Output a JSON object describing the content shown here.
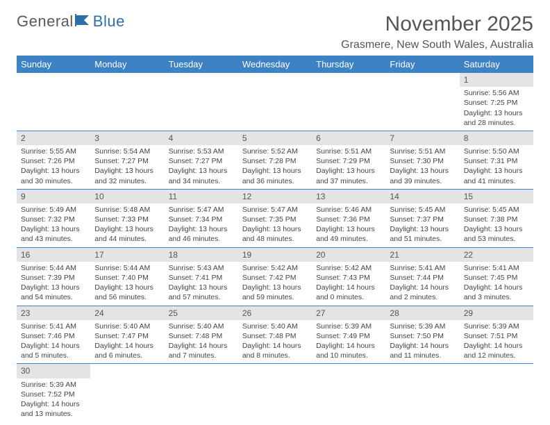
{
  "logo": {
    "text_a": "General",
    "text_b": "Blue"
  },
  "title": "November 2025",
  "location": "Grasmere, New South Wales, Australia",
  "colors": {
    "header_bg": "#3d82c4",
    "header_fg": "#ffffff",
    "daynum_bg": "#e4e4e4",
    "row_border": "#3d82c4",
    "text": "#444444",
    "title": "#555555"
  },
  "day_headers": [
    "Sunday",
    "Monday",
    "Tuesday",
    "Wednesday",
    "Thursday",
    "Friday",
    "Saturday"
  ],
  "weeks": [
    [
      null,
      null,
      null,
      null,
      null,
      null,
      {
        "n": "1",
        "sr": "5:56 AM",
        "ss": "7:25 PM",
        "dl": "13 hours and 28 minutes."
      }
    ],
    [
      {
        "n": "2",
        "sr": "5:55 AM",
        "ss": "7:26 PM",
        "dl": "13 hours and 30 minutes."
      },
      {
        "n": "3",
        "sr": "5:54 AM",
        "ss": "7:27 PM",
        "dl": "13 hours and 32 minutes."
      },
      {
        "n": "4",
        "sr": "5:53 AM",
        "ss": "7:27 PM",
        "dl": "13 hours and 34 minutes."
      },
      {
        "n": "5",
        "sr": "5:52 AM",
        "ss": "7:28 PM",
        "dl": "13 hours and 36 minutes."
      },
      {
        "n": "6",
        "sr": "5:51 AM",
        "ss": "7:29 PM",
        "dl": "13 hours and 37 minutes."
      },
      {
        "n": "7",
        "sr": "5:51 AM",
        "ss": "7:30 PM",
        "dl": "13 hours and 39 minutes."
      },
      {
        "n": "8",
        "sr": "5:50 AM",
        "ss": "7:31 PM",
        "dl": "13 hours and 41 minutes."
      }
    ],
    [
      {
        "n": "9",
        "sr": "5:49 AM",
        "ss": "7:32 PM",
        "dl": "13 hours and 43 minutes."
      },
      {
        "n": "10",
        "sr": "5:48 AM",
        "ss": "7:33 PM",
        "dl": "13 hours and 44 minutes."
      },
      {
        "n": "11",
        "sr": "5:47 AM",
        "ss": "7:34 PM",
        "dl": "13 hours and 46 minutes."
      },
      {
        "n": "12",
        "sr": "5:47 AM",
        "ss": "7:35 PM",
        "dl": "13 hours and 48 minutes."
      },
      {
        "n": "13",
        "sr": "5:46 AM",
        "ss": "7:36 PM",
        "dl": "13 hours and 49 minutes."
      },
      {
        "n": "14",
        "sr": "5:45 AM",
        "ss": "7:37 PM",
        "dl": "13 hours and 51 minutes."
      },
      {
        "n": "15",
        "sr": "5:45 AM",
        "ss": "7:38 PM",
        "dl": "13 hours and 53 minutes."
      }
    ],
    [
      {
        "n": "16",
        "sr": "5:44 AM",
        "ss": "7:39 PM",
        "dl": "13 hours and 54 minutes."
      },
      {
        "n": "17",
        "sr": "5:44 AM",
        "ss": "7:40 PM",
        "dl": "13 hours and 56 minutes."
      },
      {
        "n": "18",
        "sr": "5:43 AM",
        "ss": "7:41 PM",
        "dl": "13 hours and 57 minutes."
      },
      {
        "n": "19",
        "sr": "5:42 AM",
        "ss": "7:42 PM",
        "dl": "13 hours and 59 minutes."
      },
      {
        "n": "20",
        "sr": "5:42 AM",
        "ss": "7:43 PM",
        "dl": "14 hours and 0 minutes."
      },
      {
        "n": "21",
        "sr": "5:41 AM",
        "ss": "7:44 PM",
        "dl": "14 hours and 2 minutes."
      },
      {
        "n": "22",
        "sr": "5:41 AM",
        "ss": "7:45 PM",
        "dl": "14 hours and 3 minutes."
      }
    ],
    [
      {
        "n": "23",
        "sr": "5:41 AM",
        "ss": "7:46 PM",
        "dl": "14 hours and 5 minutes."
      },
      {
        "n": "24",
        "sr": "5:40 AM",
        "ss": "7:47 PM",
        "dl": "14 hours and 6 minutes."
      },
      {
        "n": "25",
        "sr": "5:40 AM",
        "ss": "7:48 PM",
        "dl": "14 hours and 7 minutes."
      },
      {
        "n": "26",
        "sr": "5:40 AM",
        "ss": "7:48 PM",
        "dl": "14 hours and 8 minutes."
      },
      {
        "n": "27",
        "sr": "5:39 AM",
        "ss": "7:49 PM",
        "dl": "14 hours and 10 minutes."
      },
      {
        "n": "28",
        "sr": "5:39 AM",
        "ss": "7:50 PM",
        "dl": "14 hours and 11 minutes."
      },
      {
        "n": "29",
        "sr": "5:39 AM",
        "ss": "7:51 PM",
        "dl": "14 hours and 12 minutes."
      }
    ],
    [
      {
        "n": "30",
        "sr": "5:39 AM",
        "ss": "7:52 PM",
        "dl": "14 hours and 13 minutes."
      },
      null,
      null,
      null,
      null,
      null,
      null
    ]
  ],
  "labels": {
    "sunrise": "Sunrise: ",
    "sunset": "Sunset: ",
    "daylight": "Daylight: "
  }
}
